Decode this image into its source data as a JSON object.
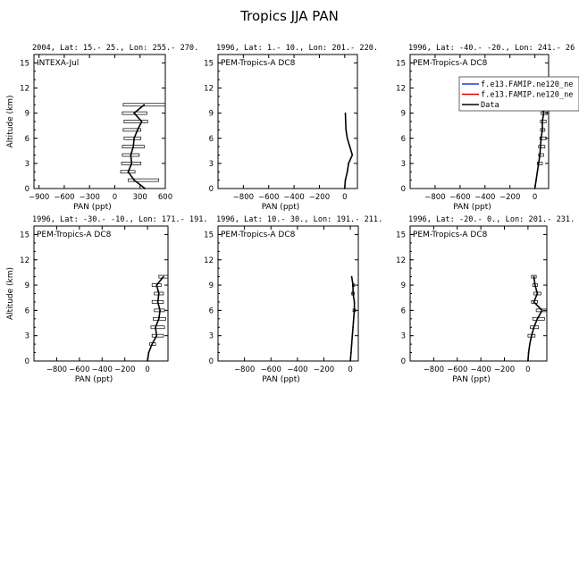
{
  "page_title": "Tropics JJA PAN",
  "colors": {
    "data": "#000000",
    "model_1": "#1f3fcf",
    "model_2": "#e00000",
    "axes": "#000000"
  },
  "legend": {
    "entries": [
      {
        "label": "f.e13.FAMIP.ne120_ne",
        "color": "#1f3fcf"
      },
      {
        "label": "f.e13.FAMIP.ne120_ne",
        "color": "#e00000"
      },
      {
        "label": "Data",
        "color": "#000000"
      }
    ]
  },
  "chart_data": [
    {
      "type": "line",
      "title": "2004, Lat: 15.- 25., Lon: 255.- 270.",
      "campaign": "INTEXA-Jul",
      "xlabel": "PAN (ppt)",
      "ylabel": "Altitude (km)",
      "xlim": [
        -960,
        600
      ],
      "ylim": [
        0,
        16
      ],
      "xticks": [
        -900,
        -600,
        -300,
        0,
        300,
        600
      ],
      "yticks": [
        0,
        3,
        6,
        9,
        12,
        15
      ],
      "series": [
        {
          "name": "Data",
          "x": [
            360,
            230,
            160,
            200,
            190,
            220,
            230,
            270,
            320,
            230,
            350
          ],
          "y": [
            0,
            1,
            2,
            3,
            4,
            5,
            6,
            7,
            8,
            9,
            10
          ],
          "xerr_low": [
            null,
            160,
            70,
            80,
            90,
            90,
            110,
            100,
            110,
            90,
            100
          ],
          "xerr_high": [
            null,
            520,
            240,
            310,
            290,
            350,
            310,
            310,
            390,
            380,
            600
          ]
        }
      ]
    },
    {
      "type": "line",
      "title": "1996, Lat: 1.- 10., Lon: 201.- 220.",
      "campaign": "PEM-Tropics-A DC8",
      "xlabel": "PAN (ppt)",
      "ylabel": "",
      "xlim": [
        -1000,
        100
      ],
      "ylim": [
        0,
        16
      ],
      "xticks": [
        -800,
        -600,
        -400,
        -200,
        0
      ],
      "yticks": [
        0,
        3,
        6,
        9,
        12,
        15
      ],
      "series": [
        {
          "name": "Data",
          "x": [
            0,
            5,
            20,
            30,
            60,
            40,
            20,
            10,
            5
          ],
          "y": [
            0,
            1,
            2,
            3,
            4,
            5,
            6,
            7,
            9
          ]
        }
      ]
    },
    {
      "type": "line",
      "title": "1996, Lat: -40.- -20., Lon: 241.- 26",
      "campaign": "PEM-Tropics-A DC8",
      "xlabel": "PAN (ppt)",
      "ylabel": "",
      "xlim": [
        -1000,
        110
      ],
      "ylim": [
        0,
        16
      ],
      "xticks": [
        -800,
        -600,
        -400,
        -200,
        0
      ],
      "yticks": [
        0,
        3,
        6,
        9,
        12,
        15
      ],
      "series": [
        {
          "name": "Data",
          "x": [
            0,
            10,
            20,
            30,
            40,
            45,
            50,
            60,
            60,
            70,
            60
          ],
          "y": [
            0,
            1,
            2,
            3,
            4,
            5,
            6,
            7,
            8,
            9,
            10
          ],
          "xerr_low": [
            null,
            null,
            null,
            20,
            30,
            30,
            40,
            45,
            45,
            50,
            50
          ],
          "xerr_high": [
            null,
            null,
            null,
            60,
            70,
            80,
            90,
            80,
            90,
            100,
            80
          ]
        }
      ]
    },
    {
      "type": "line",
      "title": "1996, Lat: -30.- -10., Lon: 171.- 191.",
      "campaign": "PEM-Tropics-A DC8",
      "xlabel": "PAN (ppt)",
      "ylabel": "Altitude (km)",
      "xlim": [
        -1000,
        180
      ],
      "ylim": [
        0,
        16
      ],
      "xticks": [
        -800,
        -600,
        -400,
        -200,
        0
      ],
      "yticks": [
        0,
        3,
        6,
        9,
        12,
        15
      ],
      "series": [
        {
          "name": "Data",
          "x": [
            0,
            10,
            40,
            80,
            70,
            100,
            110,
            90,
            100,
            80,
            140
          ],
          "y": [
            0,
            1,
            2,
            3,
            4,
            5,
            6,
            7,
            8,
            9,
            10
          ],
          "xerr_low": [
            null,
            null,
            20,
            40,
            30,
            50,
            60,
            40,
            60,
            40,
            100
          ],
          "xerr_high": [
            null,
            null,
            70,
            140,
            150,
            160,
            150,
            140,
            140,
            120,
            180
          ]
        }
      ]
    },
    {
      "type": "line",
      "title": "1996, Lat: 10.- 30., Lon: 191.- 211.",
      "campaign": "PEM-Tropics-A DC8",
      "xlabel": "PAN (ppt)",
      "ylabel": "",
      "xlim": [
        -1000,
        60
      ],
      "ylim": [
        0,
        16
      ],
      "xticks": [
        -800,
        -600,
        -400,
        -200,
        0
      ],
      "yticks": [
        0,
        3,
        6,
        9,
        12,
        15
      ],
      "series": [
        {
          "name": "Data",
          "x": [
            0,
            5,
            10,
            15,
            20,
            25,
            30,
            30,
            20,
            20,
            10
          ],
          "y": [
            0,
            1,
            2,
            3,
            4,
            5,
            6,
            7,
            8,
            9,
            10
          ],
          "xerr_low": [
            null,
            null,
            null,
            null,
            null,
            null,
            20,
            null,
            10,
            15,
            null
          ],
          "xerr_high": [
            null,
            null,
            null,
            null,
            null,
            null,
            40,
            null,
            30,
            30,
            null
          ]
        }
      ]
    },
    {
      "type": "line",
      "title": "1996, Lat: -20.- 0., Lon: 201.- 231.",
      "campaign": "PEM-Tropics-A DC8",
      "xlabel": "PAN (ppt)",
      "ylabel": "",
      "xlim": [
        -1000,
        160
      ],
      "ylim": [
        0,
        16
      ],
      "xticks": [
        -800,
        -600,
        -400,
        -200,
        0
      ],
      "yticks": [
        0,
        3,
        6,
        9,
        12,
        15
      ],
      "series": [
        {
          "name": "Data",
          "x": [
            0,
            5,
            15,
            30,
            50,
            80,
            120,
            50,
            80,
            60,
            50
          ],
          "y": [
            0,
            1,
            2,
            3,
            4,
            5,
            6,
            7,
            8,
            9,
            10
          ],
          "xerr_low": [
            null,
            null,
            null,
            0,
            20,
            40,
            70,
            30,
            50,
            40,
            30
          ],
          "xerr_high": [
            null,
            null,
            null,
            60,
            90,
            140,
            160,
            80,
            110,
            80,
            70
          ]
        }
      ]
    }
  ]
}
